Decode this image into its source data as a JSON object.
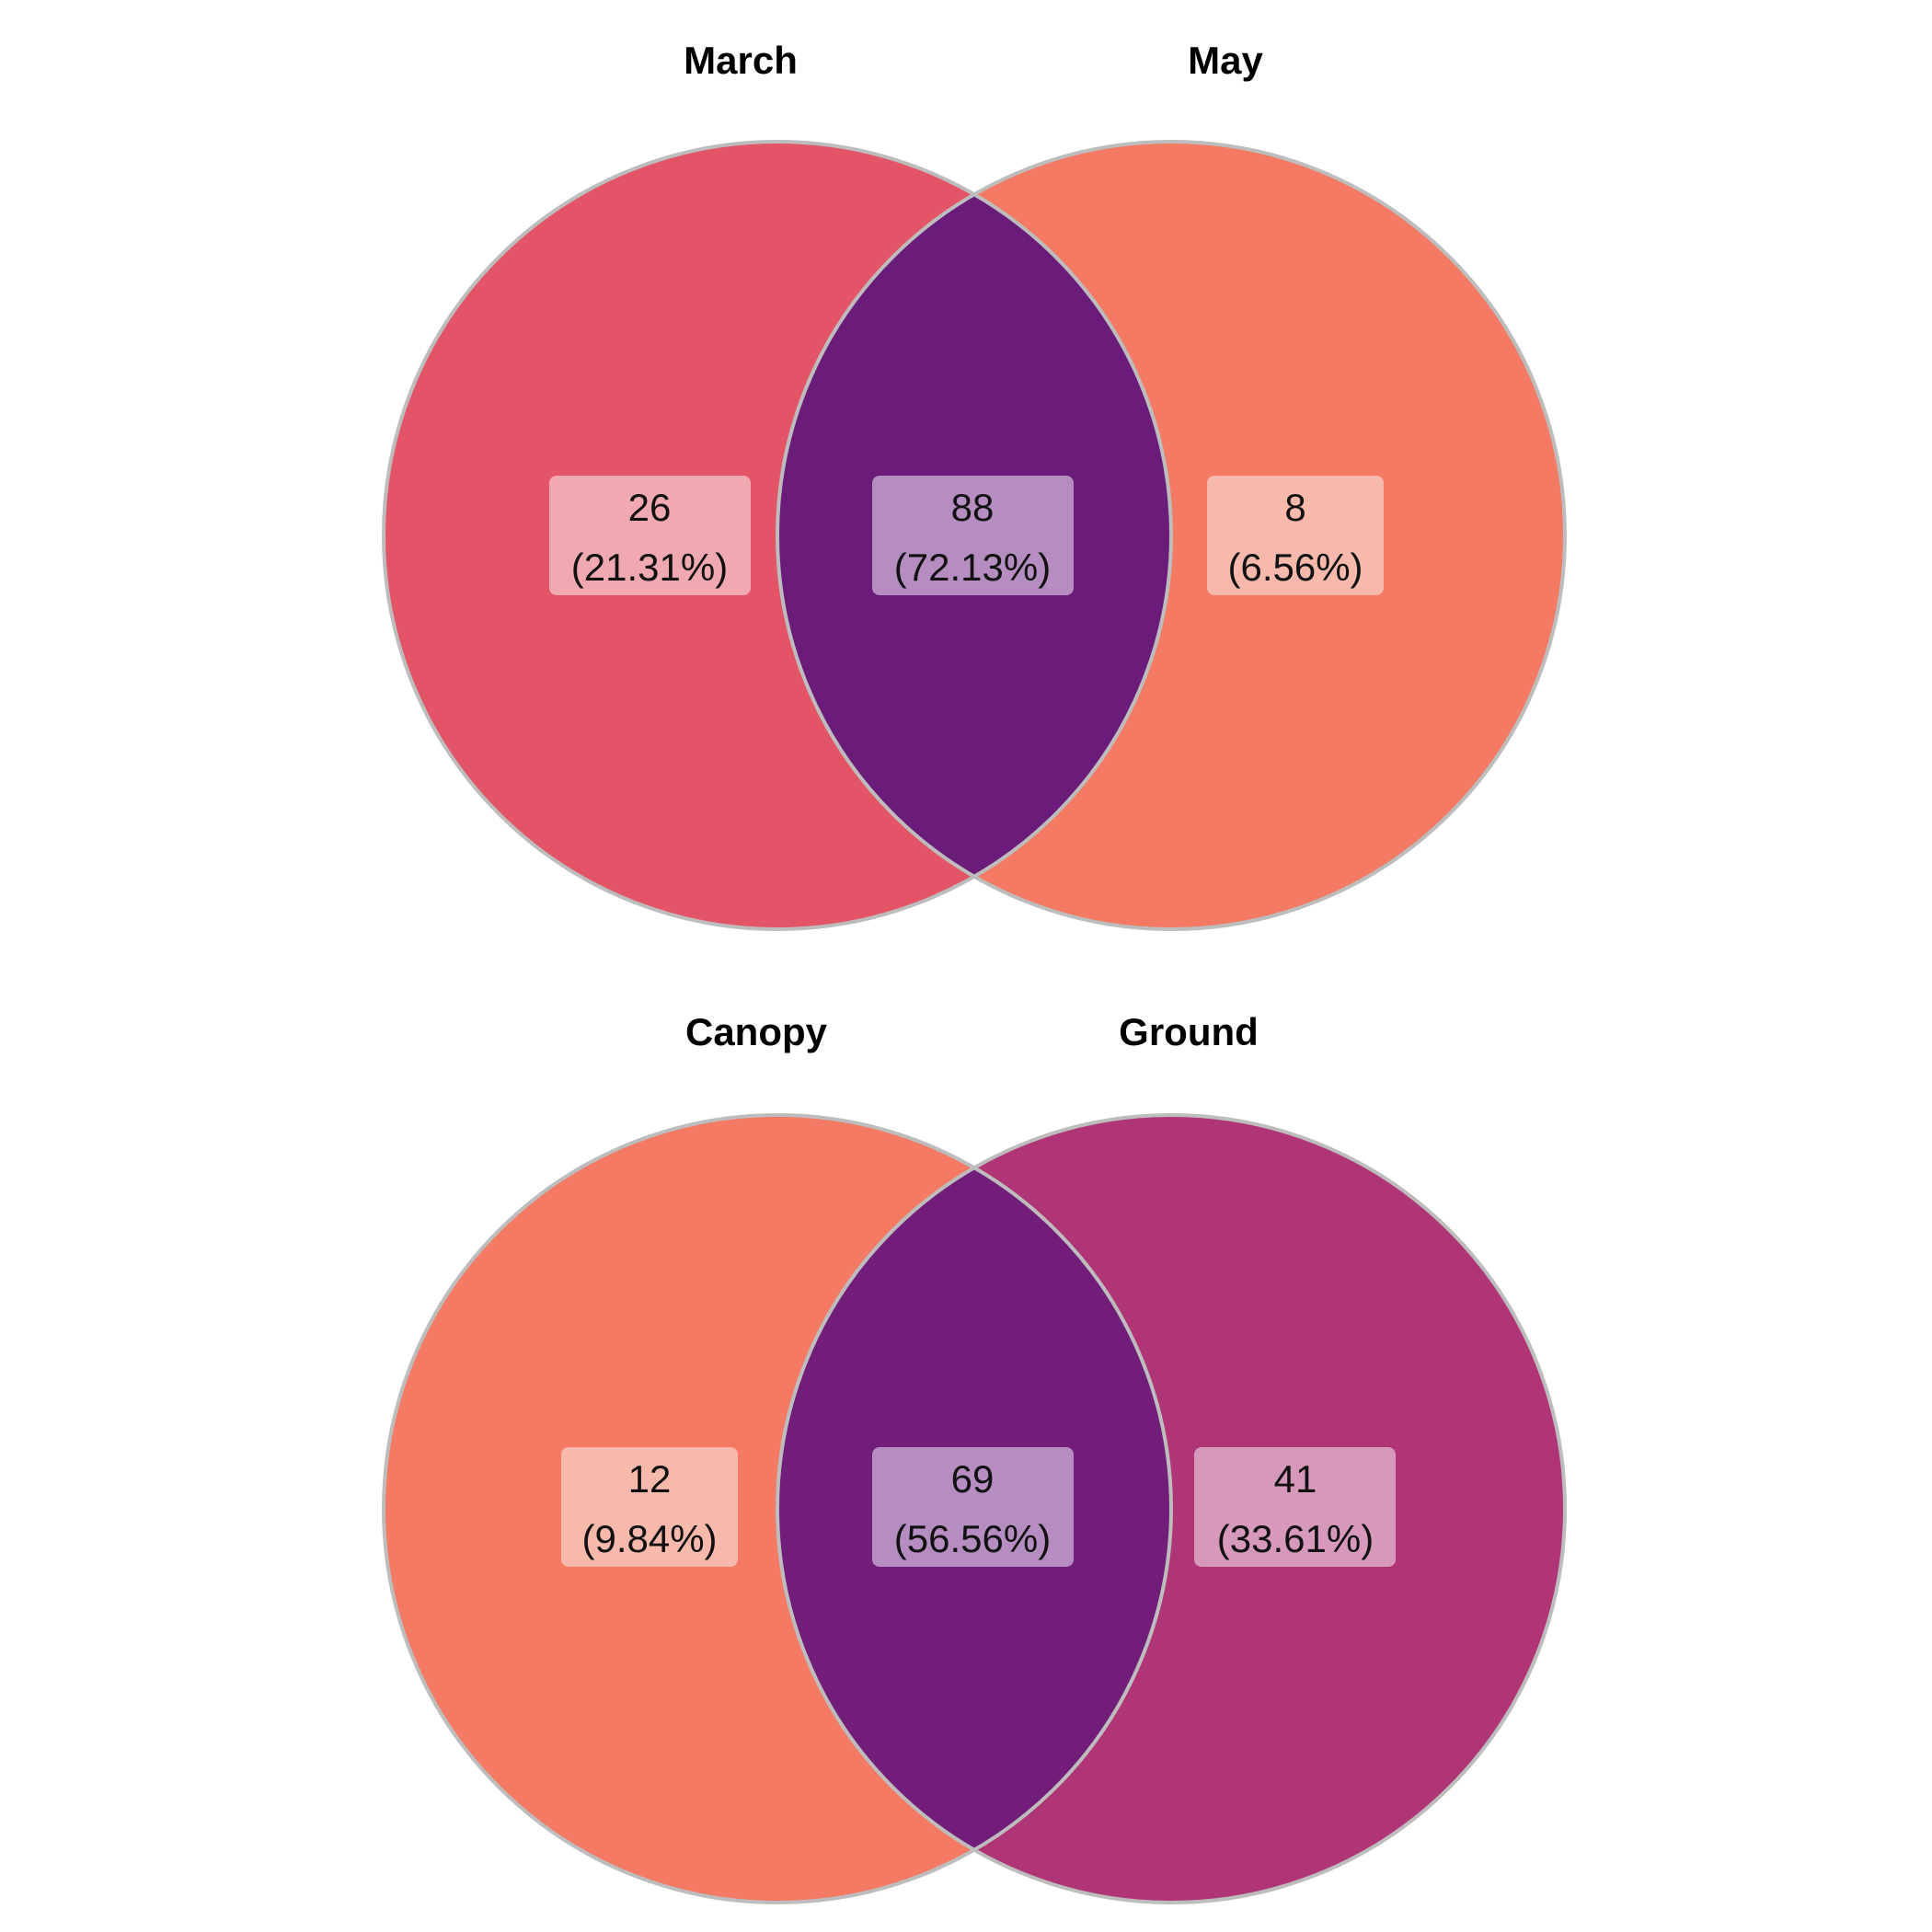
{
  "venns": [
    {
      "id": "top",
      "set_a": {
        "title": "March",
        "color": "#e35467"
      },
      "set_b": {
        "title": "May",
        "color": "#f47a63"
      },
      "intersection_color": "#6b1c7a",
      "regions": {
        "a_only": {
          "count": "26",
          "percent": "(21.31%)",
          "box_color": "#f0a9b1"
        },
        "both": {
          "count": "88",
          "percent": "(72.13%)",
          "box_color": "#b68dc0"
        },
        "b_only": {
          "count": "8",
          "percent": "(6.56%)",
          "box_color": "#f8b9ad"
        }
      }
    },
    {
      "id": "bottom",
      "set_a": {
        "title": "Canopy",
        "color": "#f47a63"
      },
      "set_b": {
        "title": "Ground",
        "color": "#b03577"
      },
      "intersection_color": "#721d7a",
      "regions": {
        "a_only": {
          "count": "12",
          "percent": "(9.84%)",
          "box_color": "#f8b9ad"
        },
        "both": {
          "count": "69",
          "percent": "(56.56%)",
          "box_color": "#b68dc0"
        },
        "b_only": {
          "count": "41",
          "percent": "(33.61%)",
          "box_color": "#d699bb"
        }
      }
    }
  ],
  "outline_color": "#bdbdbd"
}
